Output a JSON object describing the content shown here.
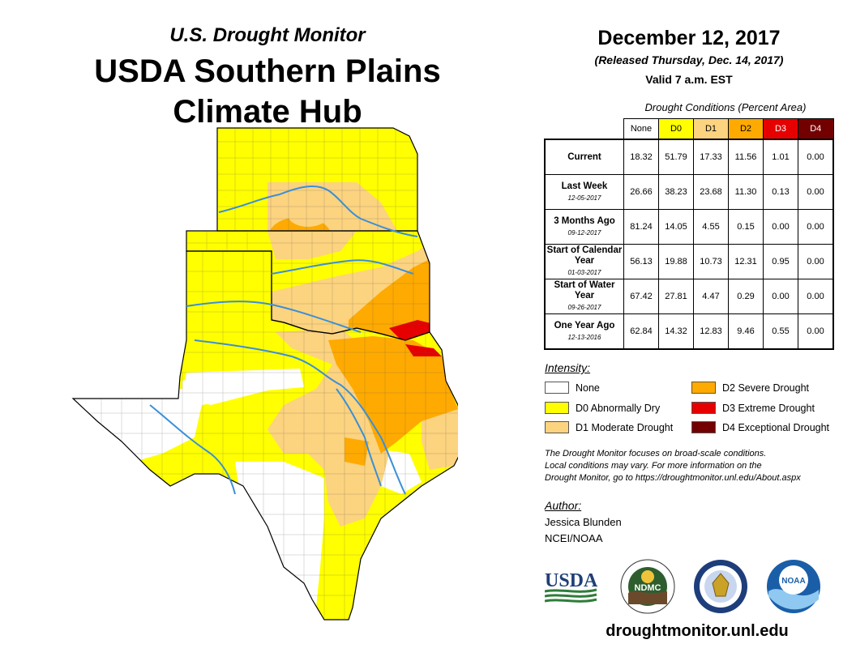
{
  "header": {
    "subtitle": "U.S. Drought Monitor",
    "title_line1": "USDA Southern Plains",
    "title_line2": "Climate Hub"
  },
  "release": {
    "date": "December 12, 2017",
    "released": "(Released Thursday, Dec. 14, 2017)",
    "valid": "Valid 7 a.m. EST"
  },
  "table": {
    "caption": "Drought Conditions (Percent Area)",
    "columns": [
      {
        "label": "None",
        "color": "#ffffff",
        "text_color": "#000000"
      },
      {
        "label": "D0",
        "color": "#ffff00",
        "text_color": "#000000"
      },
      {
        "label": "D1",
        "color": "#fcd37f",
        "text_color": "#000000"
      },
      {
        "label": "D2",
        "color": "#ffaa00",
        "text_color": "#000000"
      },
      {
        "label": "D3",
        "color": "#e60000",
        "text_color": "#ffffff"
      },
      {
        "label": "D4",
        "color": "#730000",
        "text_color": "#ffffff"
      }
    ],
    "rows": [
      {
        "label": "Current",
        "date": "",
        "values": [
          "18.32",
          "51.79",
          "17.33",
          "11.56",
          "1.01",
          "0.00"
        ]
      },
      {
        "label": "Last Week",
        "date": "12-05-2017",
        "values": [
          "26.66",
          "38.23",
          "23.68",
          "11.30",
          "0.13",
          "0.00"
        ]
      },
      {
        "label": "3 Months Ago",
        "date": "09-12-2017",
        "values": [
          "81.24",
          "14.05",
          "4.55",
          "0.15",
          "0.00",
          "0.00"
        ]
      },
      {
        "label": "Start of Calendar Year",
        "date": "01-03-2017",
        "values": [
          "56.13",
          "19.88",
          "10.73",
          "12.31",
          "0.95",
          "0.00"
        ]
      },
      {
        "label": "Start of Water Year",
        "date": "09-26-2017",
        "values": [
          "67.42",
          "27.81",
          "4.47",
          "0.29",
          "0.00",
          "0.00"
        ]
      },
      {
        "label": "One Year Ago",
        "date": "12-13-2016",
        "values": [
          "62.84",
          "14.32",
          "12.83",
          "9.46",
          "0.55",
          "0.00"
        ]
      }
    ]
  },
  "legend": {
    "title": "Intensity:",
    "items": [
      {
        "label": "None",
        "color": "#ffffff"
      },
      {
        "label": "D0 Abnormally Dry",
        "color": "#ffff00"
      },
      {
        "label": "D1 Moderate Drought",
        "color": "#fcd37f"
      },
      {
        "label": "D2 Severe Drought",
        "color": "#ffaa00"
      },
      {
        "label": "D3 Extreme Drought",
        "color": "#e60000"
      },
      {
        "label": "D4 Exceptional Drought",
        "color": "#730000"
      }
    ]
  },
  "note": {
    "line1": "The Drought Monitor focuses on broad-scale conditions.",
    "line2": "Local conditions may vary. For more information on the",
    "line3": "Drought Monitor, go to https://droughtmonitor.unl.edu/About.aspx"
  },
  "author": {
    "label": "Author:",
    "name": "Jessica Blunden",
    "org": "NCEI/NOAA"
  },
  "logos": {
    "usda": "USDA",
    "ndmc": "NDMC",
    "noaa": "NOAA"
  },
  "footer_url": "droughtmonitor.unl.edu",
  "map": {
    "regions": [
      "Kansas",
      "Oklahoma",
      "Texas"
    ],
    "colors": {
      "none": "#ffffff",
      "d0": "#ffff00",
      "d1": "#fcd37f",
      "d2": "#ffaa00",
      "d3": "#e60000",
      "river": "#3a8fd8"
    }
  }
}
